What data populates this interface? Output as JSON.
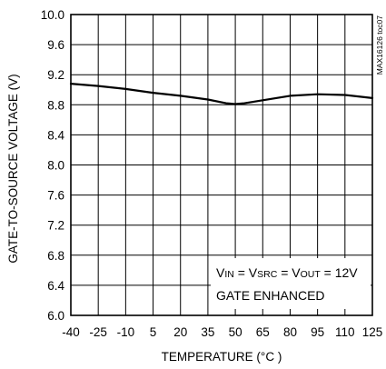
{
  "chart_data": {
    "type": "line",
    "title": "",
    "xlabel": "TEMPERATURE (°C )",
    "ylabel": "GATE-TO-SOURCE VOLTAGE (V)",
    "xlim": [
      -40,
      125
    ],
    "ylim": [
      6.0,
      10.0
    ],
    "x_ticks": [
      -40,
      -25,
      -10,
      5,
      20,
      35,
      50,
      65,
      80,
      95,
      110,
      125
    ],
    "x_tick_labels": [
      "-40",
      "-25",
      "-10",
      "5",
      "20",
      "35",
      "50",
      "65",
      "80",
      "95",
      "110",
      "125"
    ],
    "y_ticks": [
      6.0,
      6.4,
      6.8,
      7.2,
      7.6,
      8.0,
      8.4,
      8.8,
      9.2,
      9.6,
      10.0
    ],
    "y_tick_labels": [
      "6.0",
      "6.4",
      "6.8",
      "7.2",
      "7.6",
      "8.0",
      "8.4",
      "8.8",
      "9.2",
      "9.6",
      "10.0"
    ],
    "grid": true,
    "series": [
      {
        "x": [
          -40,
          -25,
          -10,
          5,
          20,
          35,
          45,
          50,
          55,
          65,
          80,
          95,
          110,
          125
        ],
        "y": [
          9.08,
          9.05,
          9.01,
          8.96,
          8.92,
          8.87,
          8.82,
          8.81,
          8.82,
          8.86,
          8.92,
          8.94,
          8.93,
          8.89
        ]
      }
    ],
    "annotation": {
      "line1_parts": [
        {
          "t": "V",
          "sub": false
        },
        {
          "t": "IN",
          "sub": true
        },
        {
          "t": " = V",
          "sub": false
        },
        {
          "t": "SRC",
          "sub": true
        },
        {
          "t": " = V",
          "sub": false
        },
        {
          "t": "OUT",
          "sub": true
        },
        {
          "t": " = 12V",
          "sub": false
        }
      ],
      "line2": "GATE ENHANCED"
    },
    "figure_code": "MAX16126 toc07"
  }
}
